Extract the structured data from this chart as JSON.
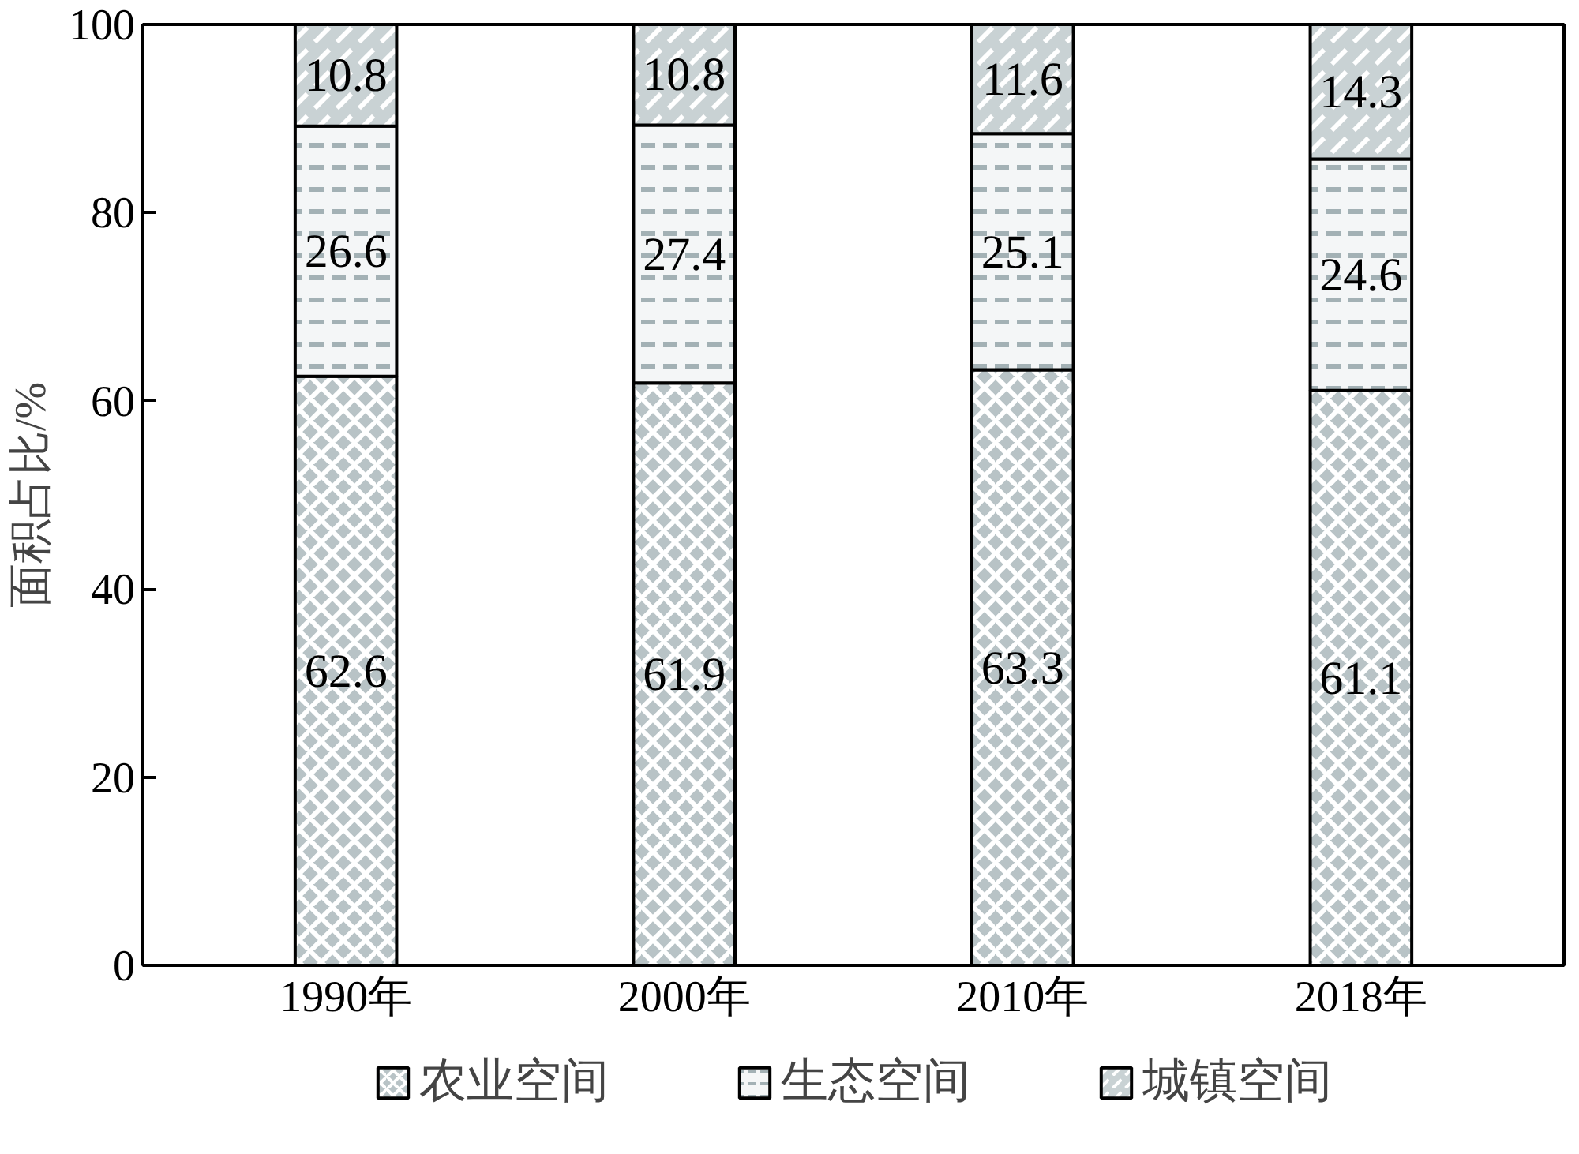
{
  "chart_data": {
    "type": "bar",
    "stacked": true,
    "ylabel": "面积占比/%",
    "categories": [
      "1990年",
      "2000年",
      "2010年",
      "2018年"
    ],
    "series": [
      {
        "name": "农业空间",
        "color": "#b8c3c6",
        "values": [
          62.6,
          61.9,
          63.3,
          61.1
        ]
      },
      {
        "name": "生态空间",
        "color": "#f4f6f7",
        "values": [
          26.6,
          27.4,
          25.1,
          24.6
        ]
      },
      {
        "name": "城镇空间",
        "color": "#c9d2d4",
        "values": [
          10.8,
          10.8,
          11.6,
          14.3
        ]
      }
    ],
    "ylim": [
      0,
      100
    ],
    "yticks": [
      0,
      20,
      40,
      60,
      80,
      100
    ],
    "grid": false,
    "legend": "bottom",
    "data_labels": true
  }
}
